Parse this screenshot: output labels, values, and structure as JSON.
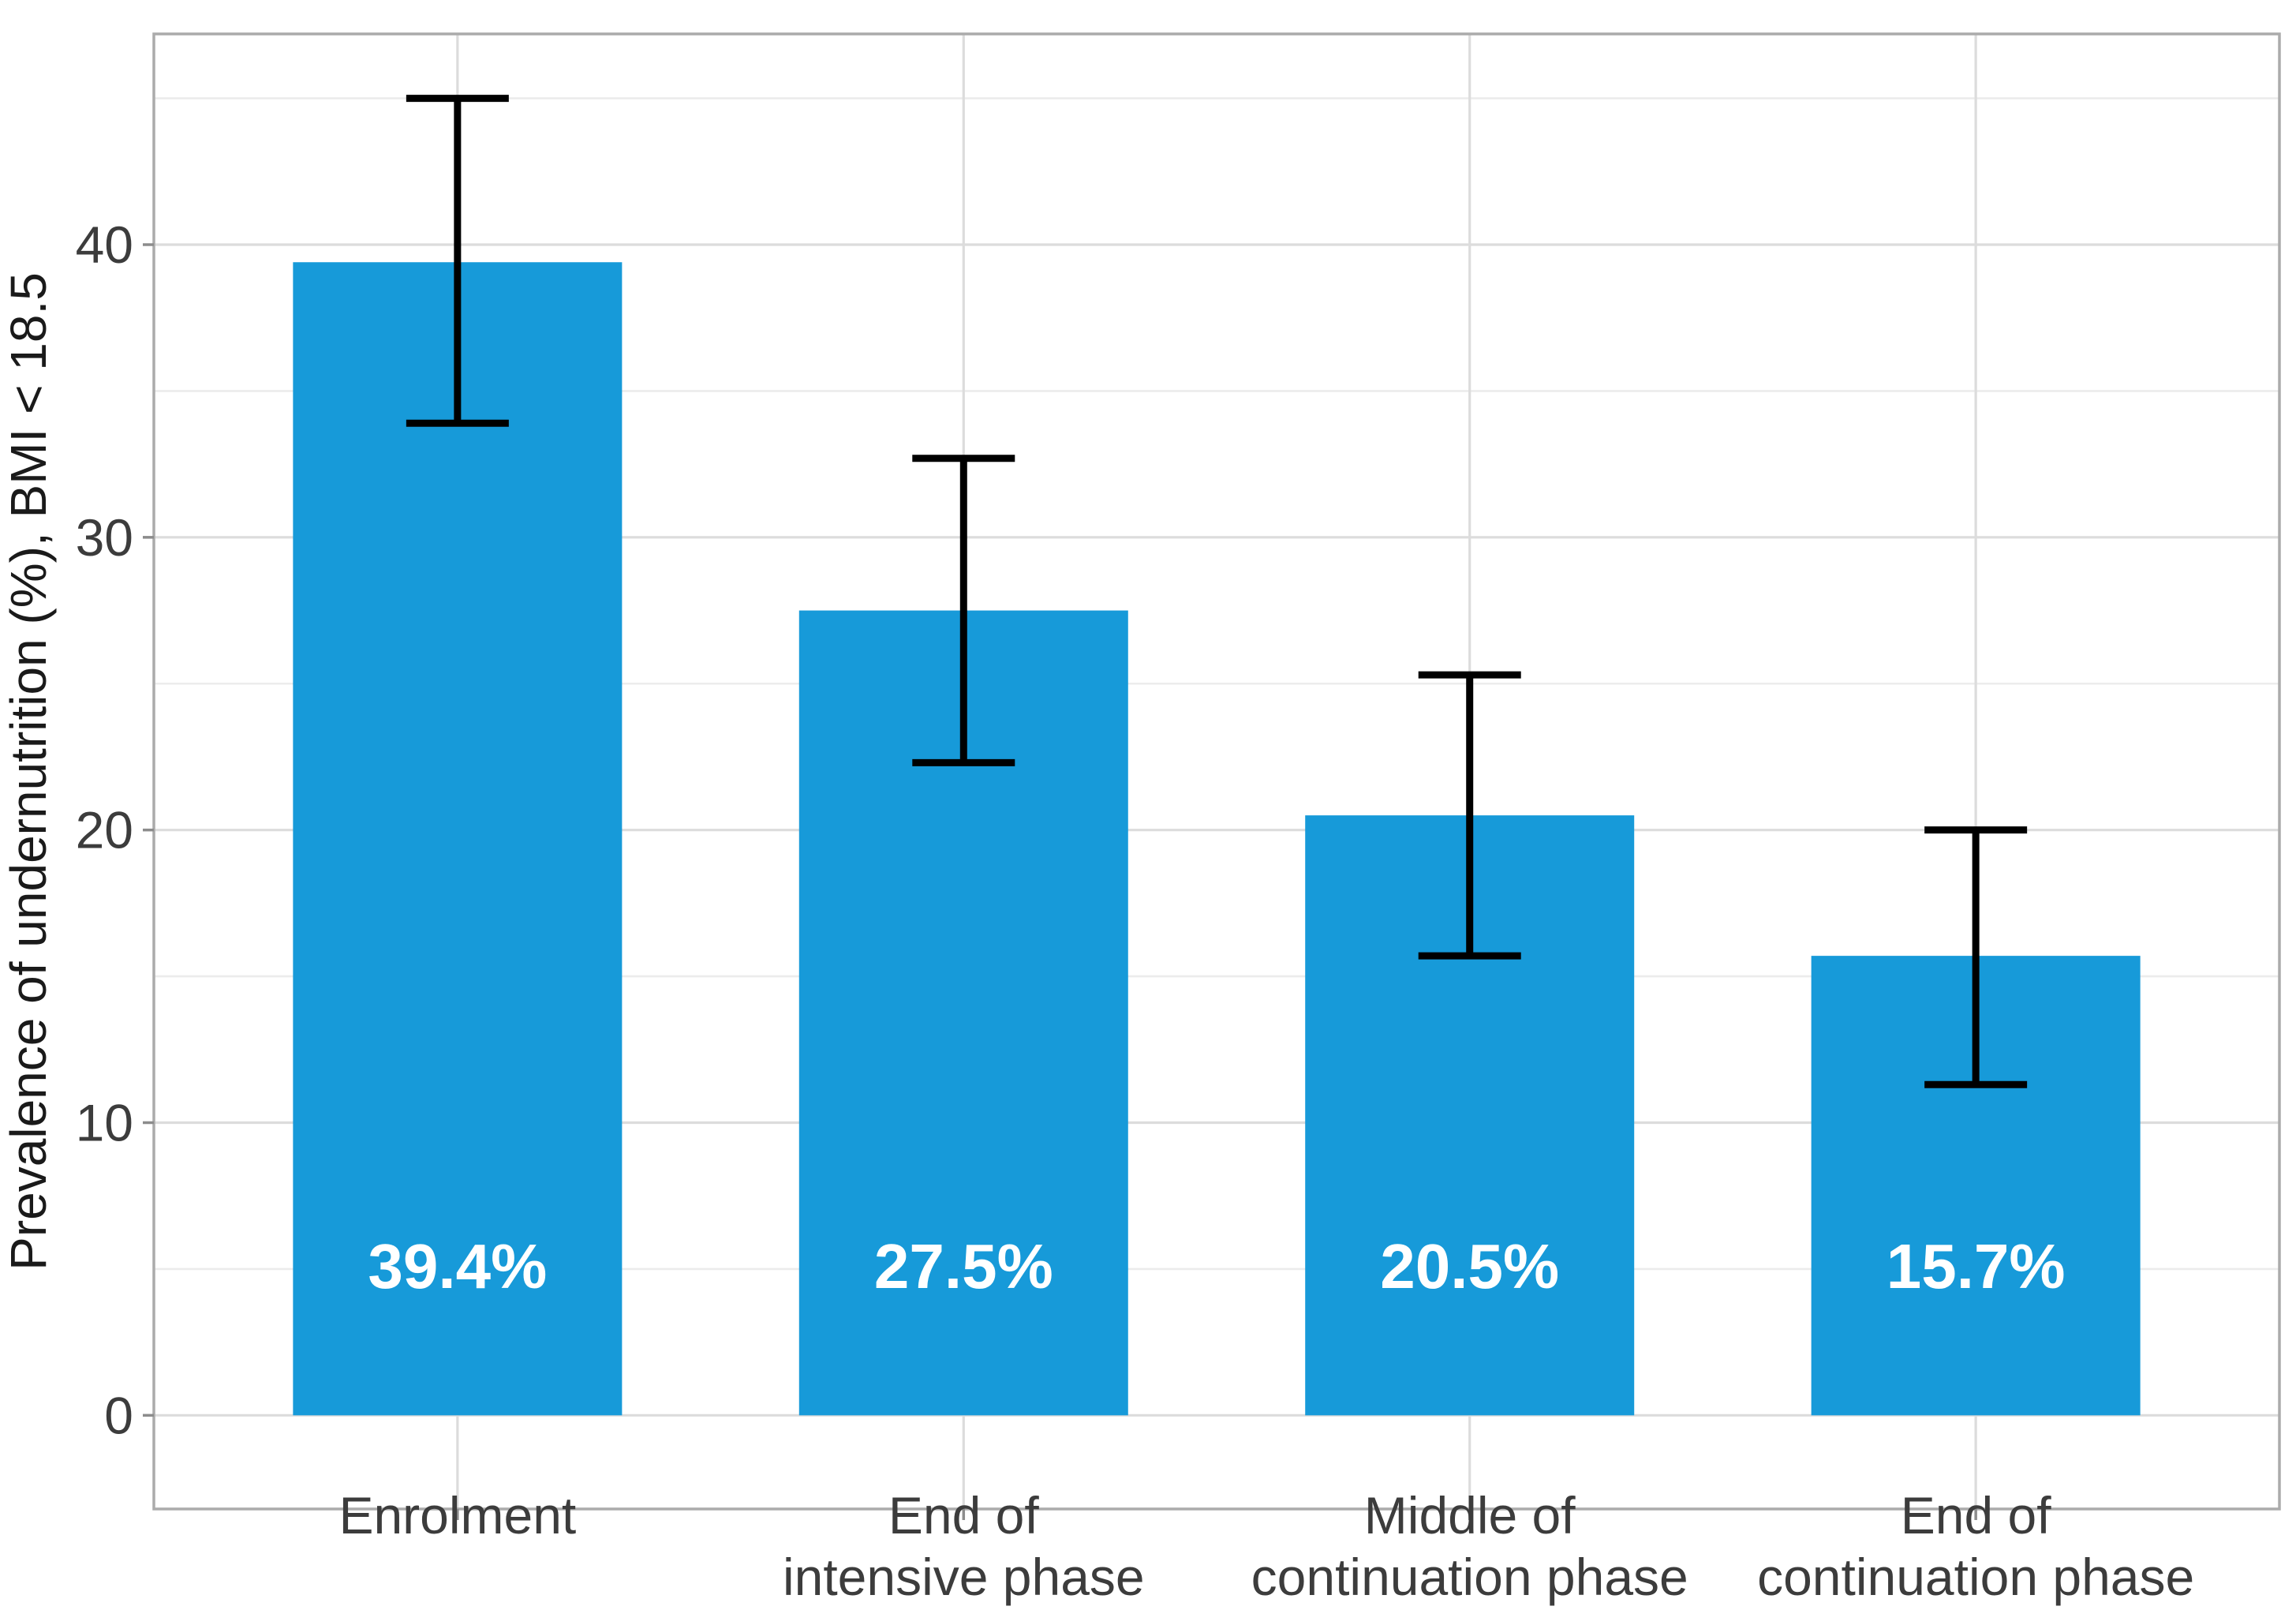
{
  "figure": {
    "background": "#FFFFFF",
    "bar_color": "#179AD9",
    "error_bar_color": "#000000",
    "grid_major_color": "#DCDCDC",
    "grid_minor_color": "#ECECEC",
    "panel_border_color": "#ABABAB",
    "tick_mark_color": "#8C8C8C",
    "axis_text_color": "#3C3C3C",
    "axis_title_color": "#1A1A1A",
    "bar_label_color": "#FFFFFF"
  },
  "chart_data": {
    "type": "bar",
    "title": "",
    "xlabel": "",
    "ylabel": "Prevalence of undernutrition (%), BMI < 18.5",
    "legend": "none",
    "grid": "horizontal major+minor, vertical major at category centers",
    "categories": [
      "Enrolment",
      "End of intensive phase",
      "Middle of continuation phase",
      "End of continuation phase"
    ],
    "category_label_lines": [
      [
        "Enrolment"
      ],
      [
        "End of",
        "intensive phase"
      ],
      [
        "Middle of",
        "continuation phase"
      ],
      [
        "End of",
        "continuation phase"
      ]
    ],
    "values": [
      39.4,
      27.5,
      20.5,
      15.7
    ],
    "bar_labels": [
      "39.4%",
      "27.5%",
      "20.5%",
      "15.7%"
    ],
    "error_bars": [
      {
        "low": 33.9,
        "high": 45.0
      },
      {
        "low": 22.3,
        "high": 32.7
      },
      {
        "low": 15.7,
        "high": 25.3
      },
      {
        "low": 11.3,
        "high": 20.0
      }
    ],
    "y_ticks": [
      0,
      10,
      20,
      30,
      40
    ],
    "y_tick_labels": [
      "0",
      "10",
      "20",
      "30",
      "40"
    ],
    "y_minor_ticks": [
      5,
      15,
      25,
      35,
      45
    ],
    "ylim": [
      -3.2,
      47.2
    ]
  }
}
